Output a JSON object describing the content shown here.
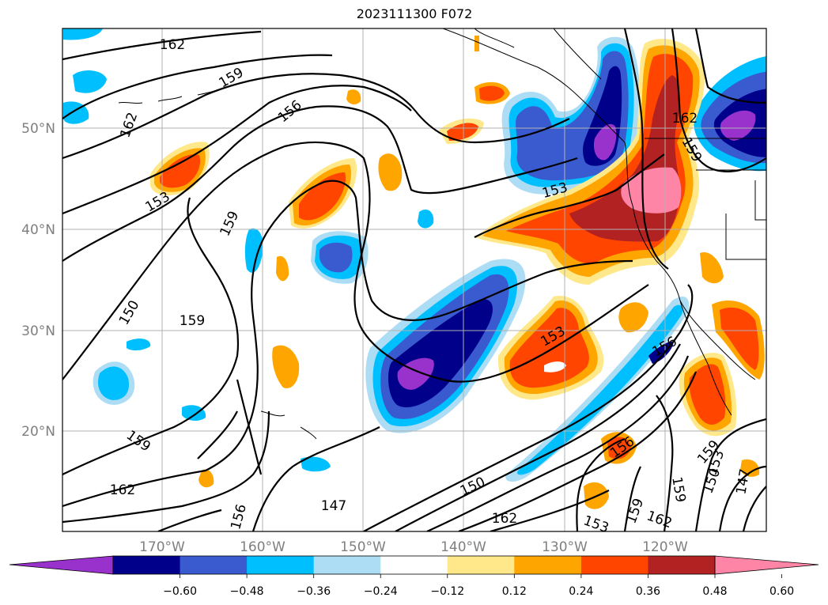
{
  "title": "2023111300 F072",
  "map": {
    "lat_ticks": [
      {
        "label": "50°N"
      },
      {
        "label": "40°N"
      },
      {
        "label": "30°N"
      },
      {
        "label": "20°N"
      }
    ],
    "lon_ticks": [
      {
        "label": "170°W"
      },
      {
        "label": "160°W"
      },
      {
        "label": "150°W"
      },
      {
        "label": "140°W"
      },
      {
        "label": "130°W"
      },
      {
        "label": "120°W"
      }
    ],
    "contour_labels": [
      {
        "text": "162"
      },
      {
        "text": "159"
      },
      {
        "text": "156"
      },
      {
        "text": "162"
      },
      {
        "text": "153"
      },
      {
        "text": "159"
      },
      {
        "text": "162"
      },
      {
        "text": "159"
      },
      {
        "text": "153"
      },
      {
        "text": "159"
      },
      {
        "text": "150"
      },
      {
        "text": "159"
      },
      {
        "text": "153"
      },
      {
        "text": "156"
      },
      {
        "text": "159"
      },
      {
        "text": "162"
      },
      {
        "text": "156"
      },
      {
        "text": "147"
      },
      {
        "text": "150"
      },
      {
        "text": "162"
      },
      {
        "text": "156"
      },
      {
        "text": "153"
      },
      {
        "text": "150"
      },
      {
        "text": "147"
      },
      {
        "text": "159"
      },
      {
        "text": "159"
      },
      {
        "text": "162"
      },
      {
        "text": "153"
      }
    ]
  },
  "colorbar": {
    "tick_labels": [
      "−0.60",
      "−0.48",
      "−0.36",
      "−0.24",
      "−0.12",
      "0.12",
      "0.24",
      "0.36",
      "0.48",
      "0.60"
    ],
    "bins": [
      {
        "color": "#9932CC"
      },
      {
        "color": "#00008B"
      },
      {
        "color": "#3A5BD0"
      },
      {
        "color": "#00BFFF"
      },
      {
        "color": "#ADDDF5"
      },
      {
        "color": "#FFFFFF"
      },
      {
        "color": "#FFE88A"
      },
      {
        "color": "#FFA500"
      },
      {
        "color": "#FF4500"
      },
      {
        "color": "#B22222"
      },
      {
        "color": "#FF85A7"
      }
    ]
  }
}
